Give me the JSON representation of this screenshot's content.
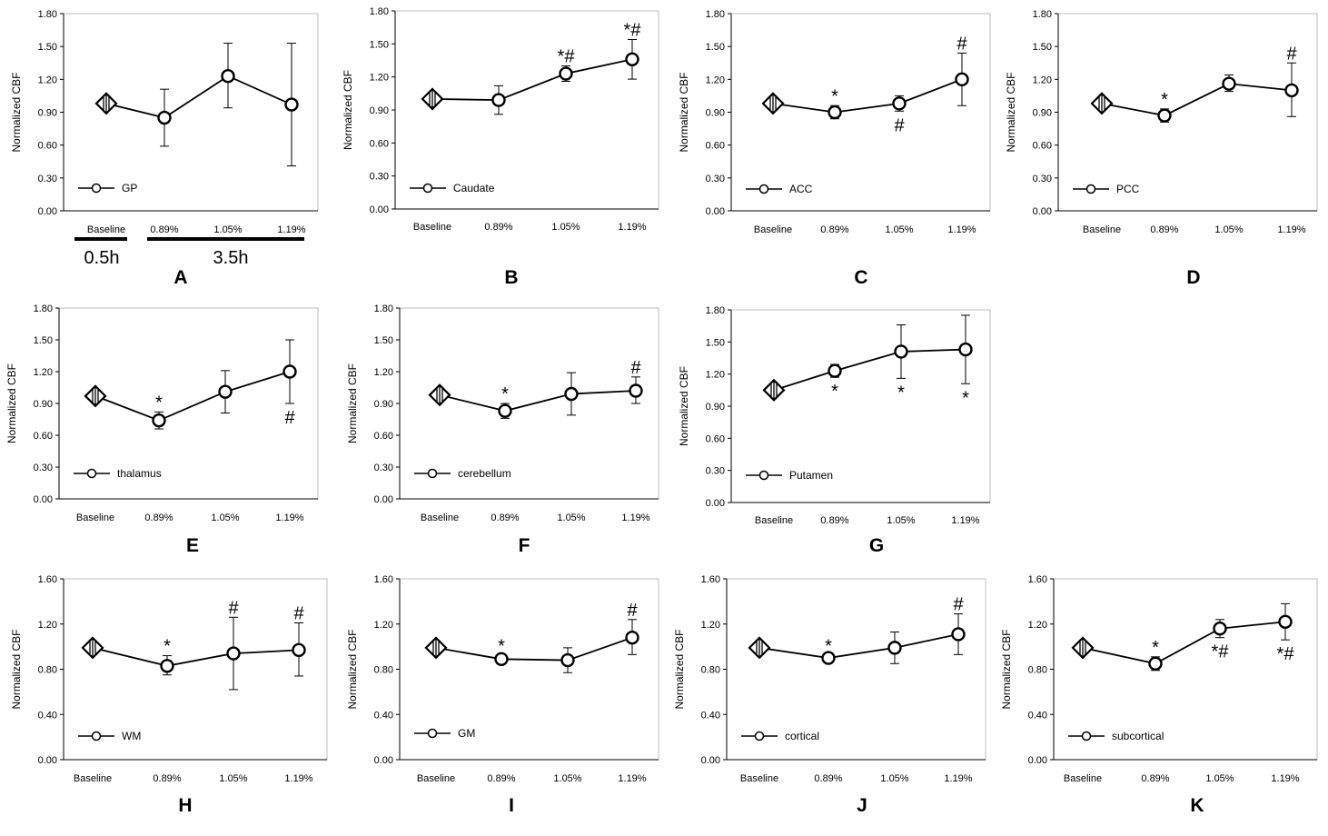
{
  "chart_data": [
    {
      "type": "line",
      "panel": "A",
      "legend": "GP",
      "ylabel": "Normalized CBF",
      "ylim": [
        0,
        1.8
      ],
      "yticks": [
        "0.00",
        "0.30",
        "0.60",
        "0.90",
        "1.20",
        "1.50",
        "1.80"
      ],
      "categories": [
        "Baseline",
        "0.89%",
        "1.05%",
        "1.19%"
      ],
      "values": [
        0.98,
        0.85,
        1.23,
        0.97
      ],
      "err_low": [
        null,
        0.26,
        0.29,
        0.56
      ],
      "err_high": [
        null,
        0.26,
        0.3,
        0.56
      ],
      "annotations": [],
      "durations": [
        "0.5h",
        "3.5h"
      ]
    },
    {
      "type": "line",
      "panel": "B",
      "legend": "Caudate",
      "ylabel": "Normalized CBF",
      "ylim": [
        0,
        1.8
      ],
      "yticks": [
        "0.00",
        "0.30",
        "0.60",
        "0.90",
        "1.20",
        "1.50",
        "1.80"
      ],
      "categories": [
        "Baseline",
        "0.89%",
        "1.05%",
        "1.19%"
      ],
      "values": [
        1.0,
        0.99,
        1.23,
        1.36
      ],
      "err_low": [
        null,
        0.13,
        0.07,
        0.18
      ],
      "err_high": [
        null,
        0.13,
        0.07,
        0.18
      ],
      "annotations": [
        {
          "i": 2,
          "text": "*#",
          "pos": "above"
        },
        {
          "i": 3,
          "text": "*#",
          "pos": "above"
        }
      ]
    },
    {
      "type": "line",
      "panel": "C",
      "legend": "ACC",
      "ylabel": "Normalized CBF",
      "ylim": [
        0,
        1.8
      ],
      "yticks": [
        "0.00",
        "0.30",
        "0.60",
        "0.90",
        "1.20",
        "1.50",
        "1.80"
      ],
      "categories": [
        "Baseline",
        "0.89%",
        "1.05%",
        "1.19%"
      ],
      "values": [
        0.98,
        0.9,
        0.98,
        1.2
      ],
      "err_low": [
        null,
        0.06,
        0.07,
        0.24
      ],
      "err_high": [
        null,
        0.06,
        0.07,
        0.24
      ],
      "annotations": [
        {
          "i": 1,
          "text": "*",
          "pos": "above"
        },
        {
          "i": 2,
          "text": "#",
          "pos": "below"
        },
        {
          "i": 3,
          "text": "#",
          "pos": "above"
        }
      ]
    },
    {
      "type": "line",
      "panel": "D",
      "legend": "PCC",
      "ylabel": "Normalized CBF",
      "ylim": [
        0,
        1.8
      ],
      "yticks": [
        "0.00",
        "0.30",
        "0.60",
        "0.90",
        "1.20",
        "1.50",
        "1.80"
      ],
      "categories": [
        "Baseline",
        "0.89%",
        "1.05%",
        "1.19%"
      ],
      "values": [
        0.98,
        0.87,
        1.16,
        1.1
      ],
      "err_low": [
        null,
        0.06,
        0.07,
        0.24
      ],
      "err_high": [
        null,
        0.06,
        0.08,
        0.25
      ],
      "annotations": [
        {
          "i": 1,
          "text": "*",
          "pos": "above"
        },
        {
          "i": 3,
          "text": "#",
          "pos": "above"
        }
      ]
    },
    {
      "type": "line",
      "panel": "E",
      "legend": "thalamus",
      "ylabel": "Normalized CBF",
      "ylim": [
        0,
        1.8
      ],
      "yticks": [
        "0.00",
        "0.30",
        "0.60",
        "0.90",
        "1.20",
        "1.50",
        "1.80"
      ],
      "categories": [
        "Baseline",
        "0.89%",
        "1.05%",
        "1.19%"
      ],
      "values": [
        0.97,
        0.74,
        1.01,
        1.2
      ],
      "err_low": [
        null,
        0.08,
        0.2,
        0.3
      ],
      "err_high": [
        null,
        0.08,
        0.2,
        0.3
      ],
      "annotations": [
        {
          "i": 1,
          "text": "*",
          "pos": "above"
        },
        {
          "i": 3,
          "text": "#",
          "pos": "below"
        }
      ]
    },
    {
      "type": "line",
      "panel": "F",
      "legend": "cerebellum",
      "ylabel": "Normalized CBF",
      "ylim": [
        0,
        1.8
      ],
      "yticks": [
        "0.00",
        "0.30",
        "0.60",
        "0.90",
        "1.20",
        "1.50",
        "1.80"
      ],
      "categories": [
        "Baseline",
        "0.89%",
        "1.05%",
        "1.19%"
      ],
      "values": [
        0.98,
        0.83,
        0.99,
        1.02
      ],
      "err_low": [
        null,
        0.07,
        0.2,
        0.12
      ],
      "err_high": [
        null,
        0.07,
        0.2,
        0.13
      ],
      "annotations": [
        {
          "i": 1,
          "text": "*",
          "pos": "above"
        },
        {
          "i": 3,
          "text": "#",
          "pos": "above"
        }
      ]
    },
    {
      "type": "line",
      "panel": "G",
      "legend": "Putamen",
      "ylabel": "Normalized CBF",
      "ylim": [
        0,
        1.8
      ],
      "yticks": [
        "0.00",
        "0.30",
        "0.60",
        "0.90",
        "1.20",
        "1.50",
        "1.80"
      ],
      "categories": [
        "Baseline",
        "0.89%",
        "1.05%",
        "1.19%"
      ],
      "values": [
        1.05,
        1.23,
        1.41,
        1.43
      ],
      "err_low": [
        null,
        0.06,
        0.25,
        0.32
      ],
      "err_high": [
        null,
        0.06,
        0.25,
        0.32
      ],
      "annotations": [
        {
          "i": 1,
          "text": "*",
          "pos": "below"
        },
        {
          "i": 2,
          "text": "*",
          "pos": "below"
        },
        {
          "i": 3,
          "text": "*",
          "pos": "below"
        }
      ]
    },
    {
      "type": "line",
      "panel": "H",
      "legend": "WM",
      "ylabel": "Normalized CBF",
      "ylim": [
        0,
        1.6
      ],
      "yticks": [
        "0.00",
        "0.40",
        "0.80",
        "1.20",
        "1.60"
      ],
      "categories": [
        "Baseline",
        "0.89%",
        "1.05%",
        "1.19%"
      ],
      "values": [
        0.99,
        0.83,
        0.94,
        0.97
      ],
      "err_low": [
        null,
        0.08,
        0.32,
        0.23
      ],
      "err_high": [
        null,
        0.09,
        0.32,
        0.24
      ],
      "annotations": [
        {
          "i": 1,
          "text": "*",
          "pos": "above"
        },
        {
          "i": 2,
          "text": "#",
          "pos": "above"
        },
        {
          "i": 3,
          "text": "#",
          "pos": "above"
        }
      ]
    },
    {
      "type": "line",
      "panel": "I",
      "legend": "GM",
      "ylabel": "Normalized CBF",
      "ylim": [
        0,
        1.6
      ],
      "yticks": [
        "0.00",
        "0.40",
        "0.80",
        "1.20",
        "1.60"
      ],
      "categories": [
        "Baseline",
        "0.89%",
        "1.05%",
        "1.19%"
      ],
      "values": [
        0.99,
        0.89,
        0.88,
        1.08
      ],
      "err_low": [
        null,
        0.03,
        0.11,
        0.15
      ],
      "err_high": [
        null,
        0.03,
        0.11,
        0.16
      ],
      "annotations": [
        {
          "i": 1,
          "text": "*",
          "pos": "above"
        },
        {
          "i": 3,
          "text": "#",
          "pos": "above"
        }
      ]
    },
    {
      "type": "line",
      "panel": "J",
      "legend": "cortical",
      "ylabel": "Normalized CBF",
      "ylim": [
        0,
        1.6
      ],
      "yticks": [
        "0.00",
        "0.40",
        "0.80",
        "1.20",
        "1.60"
      ],
      "categories": [
        "Baseline",
        "0.89%",
        "1.05%",
        "1.19%"
      ],
      "values": [
        0.99,
        0.9,
        0.99,
        1.11
      ],
      "err_low": [
        null,
        0.02,
        0.14,
        0.18
      ],
      "err_high": [
        null,
        0.02,
        0.14,
        0.18
      ],
      "annotations": [
        {
          "i": 1,
          "text": "*",
          "pos": "above"
        },
        {
          "i": 3,
          "text": "#",
          "pos": "above"
        }
      ]
    },
    {
      "type": "line",
      "panel": "K",
      "legend": "subcortical",
      "ylabel": "Normalized CBF",
      "ylim": [
        0,
        1.6
      ],
      "yticks": [
        "0.00",
        "0.40",
        "0.80",
        "1.20",
        "1.60"
      ],
      "categories": [
        "Baseline",
        "0.89%",
        "1.05%",
        "1.19%"
      ],
      "values": [
        0.99,
        0.85,
        1.16,
        1.22
      ],
      "err_low": [
        null,
        0.06,
        0.08,
        0.16
      ],
      "err_high": [
        null,
        0.06,
        0.08,
        0.16
      ],
      "annotations": [
        {
          "i": 1,
          "text": "*",
          "pos": "above"
        },
        {
          "i": 2,
          "text": "*#",
          "pos": "below"
        },
        {
          "i": 3,
          "text": "*#",
          "pos": "below"
        }
      ]
    }
  ]
}
